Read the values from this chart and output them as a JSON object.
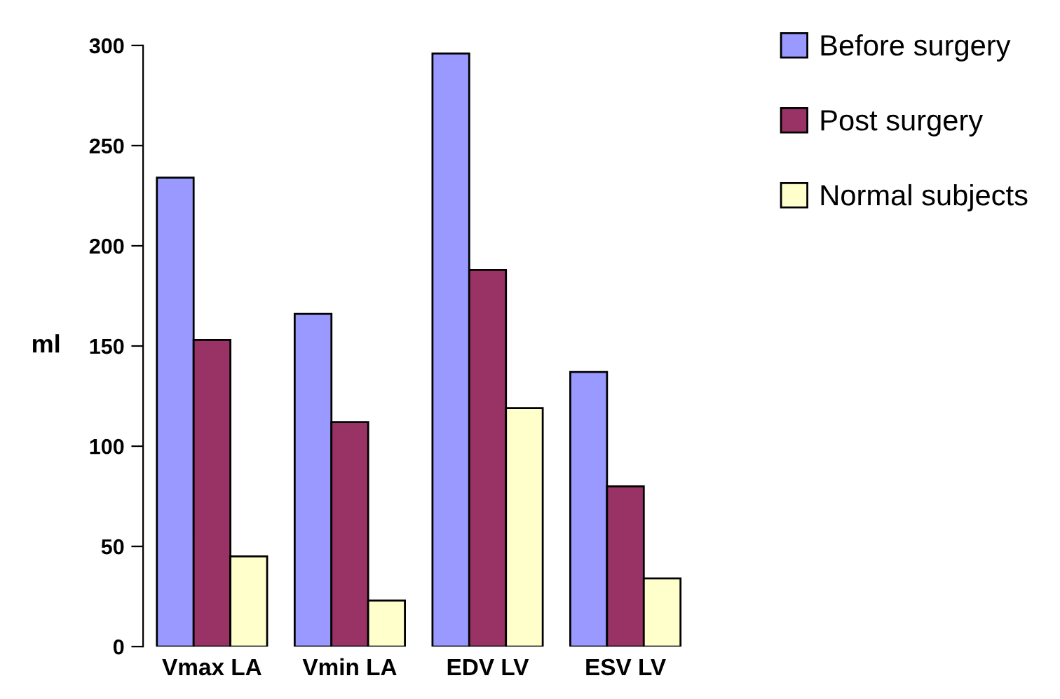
{
  "chart_data": {
    "type": "bar",
    "ylabel": "ml",
    "categories": [
      "Vmax LA",
      "Vmin LA",
      "EDV LV",
      "ESV LV"
    ],
    "series": [
      {
        "name": "Before surgery",
        "color": "#9999ff",
        "values": [
          234,
          166,
          296,
          137
        ]
      },
      {
        "name": "Post surgery",
        "color": "#993366",
        "values": [
          153,
          112,
          188,
          80
        ]
      },
      {
        "name": "Normal subjects",
        "color": "#ffffcc",
        "values": [
          45,
          23,
          119,
          34
        ]
      }
    ],
    "ylim": [
      0,
      300
    ],
    "yticks": [
      0,
      50,
      100,
      150,
      200,
      250,
      300
    ],
    "grid": false,
    "legend": "top right"
  }
}
